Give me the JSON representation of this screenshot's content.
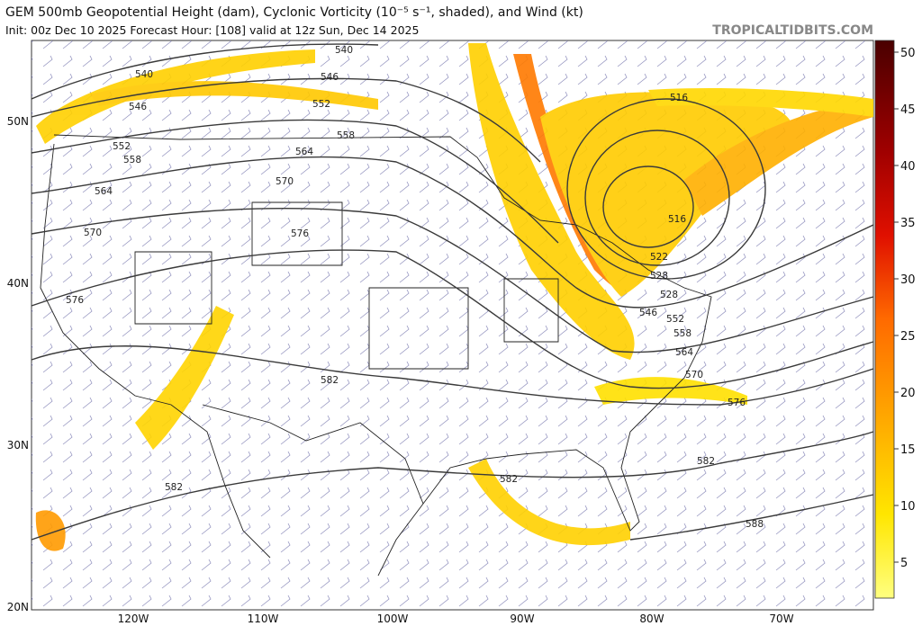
{
  "header": {
    "title": "GEM 500mb Geopotential Height (dam), Cyclonic Vorticity (10⁻⁵ s⁻¹, shaded), and Wind (kt)",
    "subtitle": "Init: 00z Dec 10 2025   Forecast Hour: [108]   valid at 12z Sun, Dec 14 2025",
    "watermark": "TROPICALTIDBITS.COM"
  },
  "colorbar": {
    "ticks": [
      5,
      10,
      15,
      20,
      25,
      30,
      35,
      40,
      45,
      50
    ]
  },
  "latitude_labels": [
    "50N",
    "40N",
    "30N",
    "20N"
  ],
  "longitude_labels": [
    "120W",
    "110W",
    "100W",
    "90W",
    "80W",
    "70W"
  ],
  "contour_labels": [
    "540",
    "540",
    "546",
    "546",
    "552",
    "552",
    "558",
    "558",
    "564",
    "564",
    "570",
    "570",
    "576",
    "576",
    "582",
    "582",
    "582",
    "582",
    "588",
    "516",
    "516",
    "522",
    "528",
    "528",
    "546",
    "552",
    "558",
    "564",
    "570",
    "576"
  ]
}
